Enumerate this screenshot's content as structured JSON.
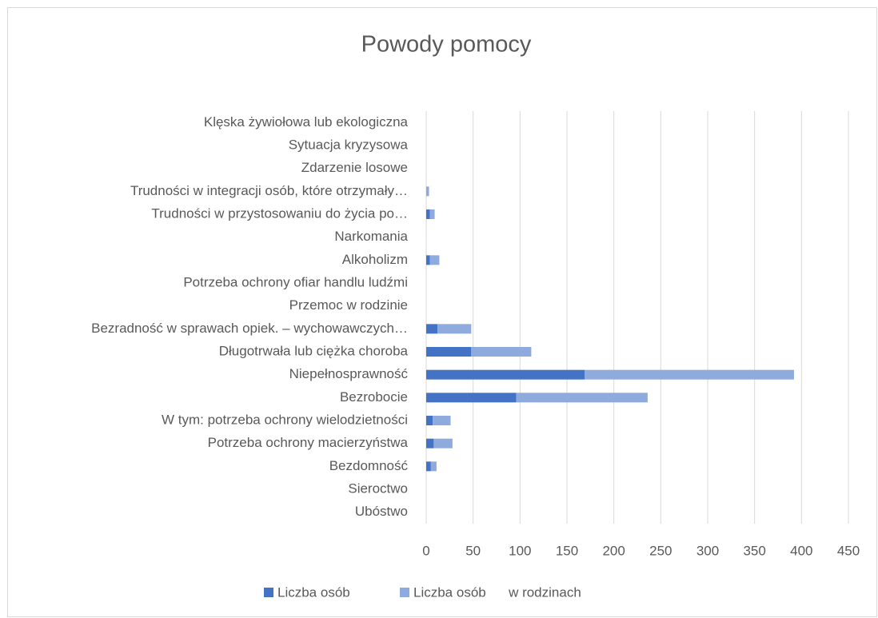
{
  "chart_data": {
    "type": "stacked_barh",
    "title": "Powody pomocy",
    "categories": [
      "Ubóstwo",
      "Sieroctwo",
      "Bezdomność",
      "Potrzeba ochrony macierzyństwa",
      "W tym: potrzeba ochrony wielodzietności",
      "Bezrobocie",
      "Niepełnosprawność",
      "Długotrwała lub ciężka choroba",
      "Bezradność w sprawach opiek. – wychowawczych…",
      "Przemoc w rodzinie",
      "Potrzeba ochrony ofiar handlu ludźmi",
      "Alkoholizm",
      "Narkomania",
      "Trudności w przystosowaniu do życia po…",
      "Trudności w integracji osób, które otrzymały…",
      "Zdarzenie losowe",
      "Sytuacja kryzysowa",
      "Klęska żywiołowa lub ekologiczna"
    ],
    "series": [
      {
        "name": "Liczba osób",
        "color": "#4472c4",
        "values": [
          0,
          0,
          5,
          8,
          7,
          96,
          169,
          48,
          12,
          0,
          0,
          4,
          0,
          4,
          0,
          0,
          0,
          0
        ]
      },
      {
        "name": "Liczba osób      w rodzinach",
        "color": "#8faadc",
        "values": [
          0,
          0,
          6,
          20,
          19,
          140,
          223,
          64,
          36,
          0,
          0,
          10,
          0,
          5,
          3,
          0,
          0,
          0
        ]
      }
    ],
    "xlim": [
      0,
      450
    ],
    "xticks": [
      0,
      50,
      100,
      150,
      200,
      250,
      300,
      350,
      400,
      450
    ],
    "grid": true
  }
}
